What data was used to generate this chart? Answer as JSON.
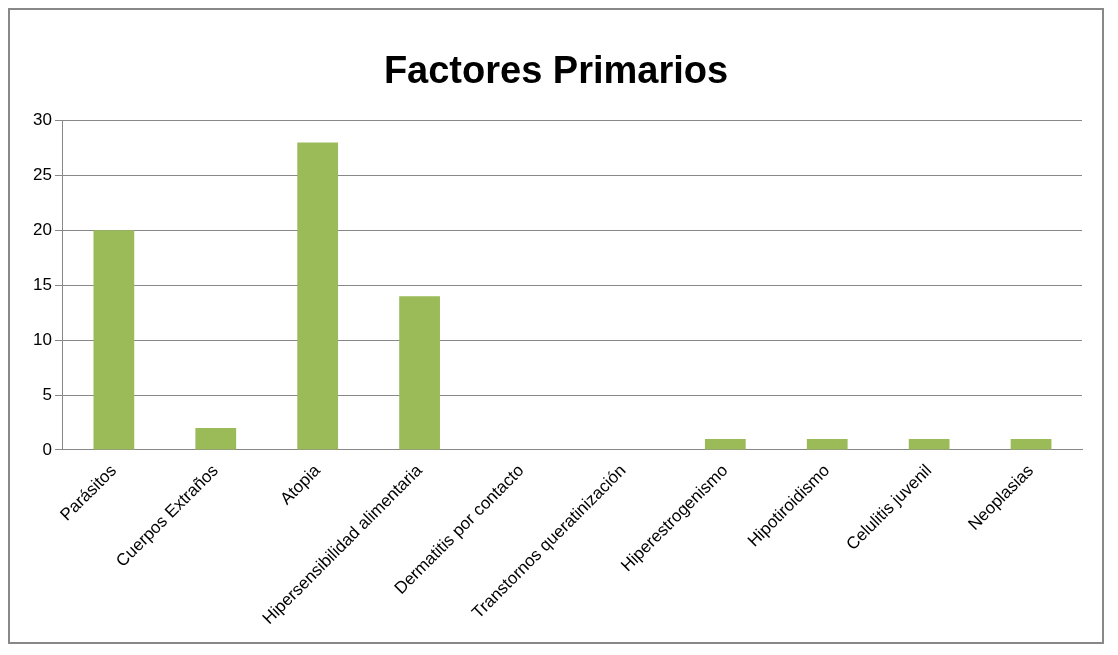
{
  "chart_data": {
    "type": "bar",
    "title": "Factores Primarios",
    "categories": [
      "Parásitos",
      "Cuerpos Extraños",
      "Atopia",
      "Hipersensibilidad alimentaria",
      "Dermatitis por contacto",
      "Transtornos queratinización",
      "Hiperestrogenismo",
      "Hipotiroidismo",
      "Celulitis juvenil",
      "Neoplasias"
    ],
    "values": [
      20,
      2,
      28,
      14,
      0,
      0,
      1,
      1,
      1,
      1
    ],
    "color": "#9bbb59",
    "ylim": [
      0,
      30
    ],
    "yticks": [
      0,
      5,
      10,
      15,
      20,
      25,
      30
    ],
    "grid": "y",
    "legend": false
  }
}
